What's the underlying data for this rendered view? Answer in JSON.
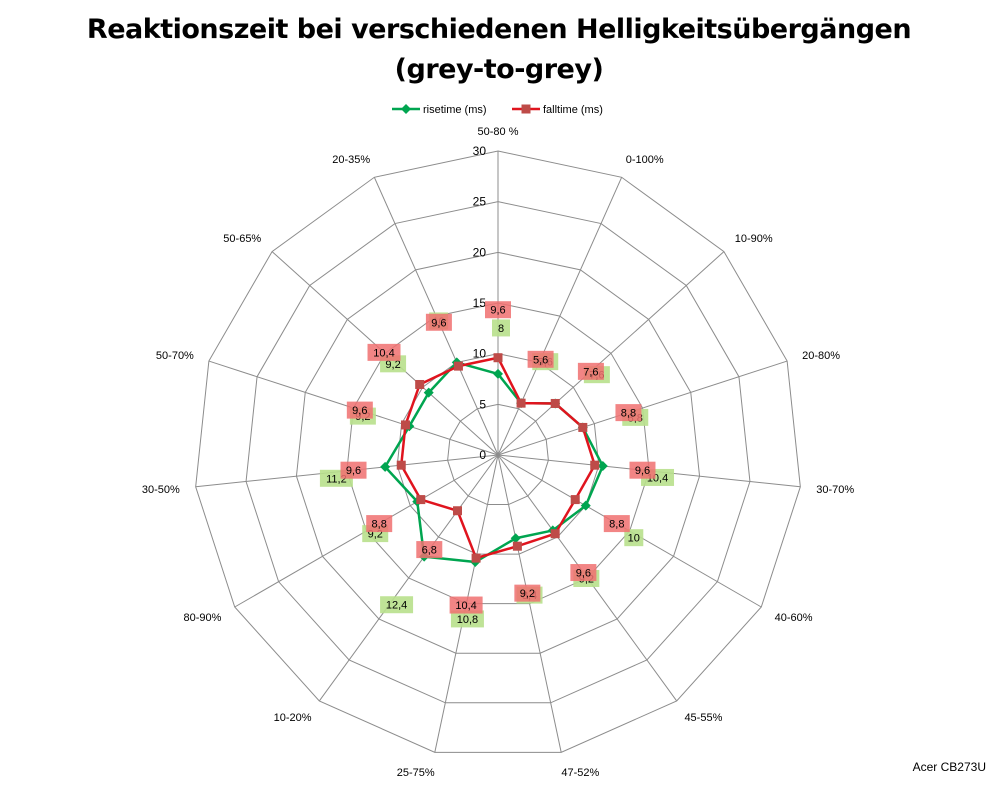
{
  "chart_data": {
    "type": "radar",
    "title_line1": "Reaktionszeit bei verschiedenen Helligkeitsübergängen",
    "title_line2": "(grey-to-grey)",
    "categories": [
      "50-80 %",
      "0-100%",
      "10-90%",
      "20-80%",
      "30-70%",
      "40-60%",
      "45-55%",
      "47-52%",
      "25-75%",
      "10-20%",
      "80-90%",
      "30-50%",
      "50-70%",
      "50-65%",
      "20-35%"
    ],
    "rlim": [
      0,
      30
    ],
    "r_ticks": [
      "0",
      "5",
      "10",
      "15",
      "20",
      "25",
      "30"
    ],
    "grid": true,
    "legend_position": "top",
    "series": [
      {
        "name": "risetime (ms)",
        "color": "#00A550",
        "marker": "diamond",
        "label_bg": "#B8E08C",
        "values": [
          8,
          5.6,
          7.6,
          8.8,
          10.4,
          10,
          9.2,
          8.4,
          10.8,
          12.4,
          9.2,
          11.2,
          9.2,
          9.2,
          10
        ],
        "labels": [
          "8",
          "5,6",
          "7,6",
          "8,8",
          "10,4",
          "10",
          "9,2",
          "8,4",
          "10,8",
          "12,4",
          "9,2",
          "11,2",
          "9,2",
          "9,2",
          "10"
        ]
      },
      {
        "name": "falltime (ms)",
        "color": "#E0141E",
        "marker": "square",
        "label_bg": "#F07070",
        "values": [
          9.6,
          5.6,
          7.6,
          8.8,
          9.6,
          8.8,
          9.6,
          9.2,
          10.4,
          6.8,
          8.8,
          9.6,
          9.6,
          10.4,
          9.6
        ],
        "labels": [
          "9,6",
          "5,6",
          "7,6",
          "8,8",
          "9,6",
          "8,8",
          "9,6",
          "9,2",
          "10,4",
          "6,8",
          "8,8",
          "9,6",
          "9,6",
          "10,4",
          "9,6"
        ]
      }
    ]
  },
  "watermark": "Acer CB273U"
}
